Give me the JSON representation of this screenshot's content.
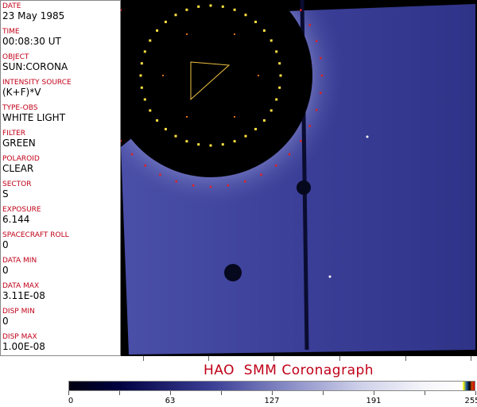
{
  "fields": [
    {
      "label": "DATE",
      "value": "23 May 1985"
    },
    {
      "label": "TIME",
      "value": "00:08:30 UT"
    },
    {
      "label": "OBJECT",
      "value": "SUN:CORONA"
    },
    {
      "label": "INTENSITY SOURCE",
      "value": "(K+F)*V"
    },
    {
      "label": "TYPE-OBS",
      "value": "WHITE LIGHT"
    },
    {
      "label": "FILTER",
      "value": "GREEN"
    },
    {
      "label": "POLAROID",
      "value": "CLEAR"
    },
    {
      "label": "SECTOR",
      "value": "S"
    },
    {
      "label": "EXPOSURE",
      "value": "6.144"
    },
    {
      "label": "SPACECRAFT ROLL",
      "value": "0"
    },
    {
      "label": "DATA MIN",
      "value": "0"
    },
    {
      "label": "DATA MAX",
      "value": "3.11E-08"
    },
    {
      "label": "DISP MIN",
      "value": "0"
    },
    {
      "label": "DISP MAX",
      "value": "1.00E-08"
    }
  ],
  "title": "HAO  SMM Coronagraph",
  "colorbar": {
    "ticks": [
      "0",
      "63",
      "127",
      "191",
      "255"
    ],
    "colors": {
      "dark": "#000010",
      "mid": "#3a3e95",
      "light": "#ffffff"
    }
  },
  "colors": {
    "label": "#c00018",
    "corona": "#3a3e95",
    "occulter": "#000000"
  }
}
